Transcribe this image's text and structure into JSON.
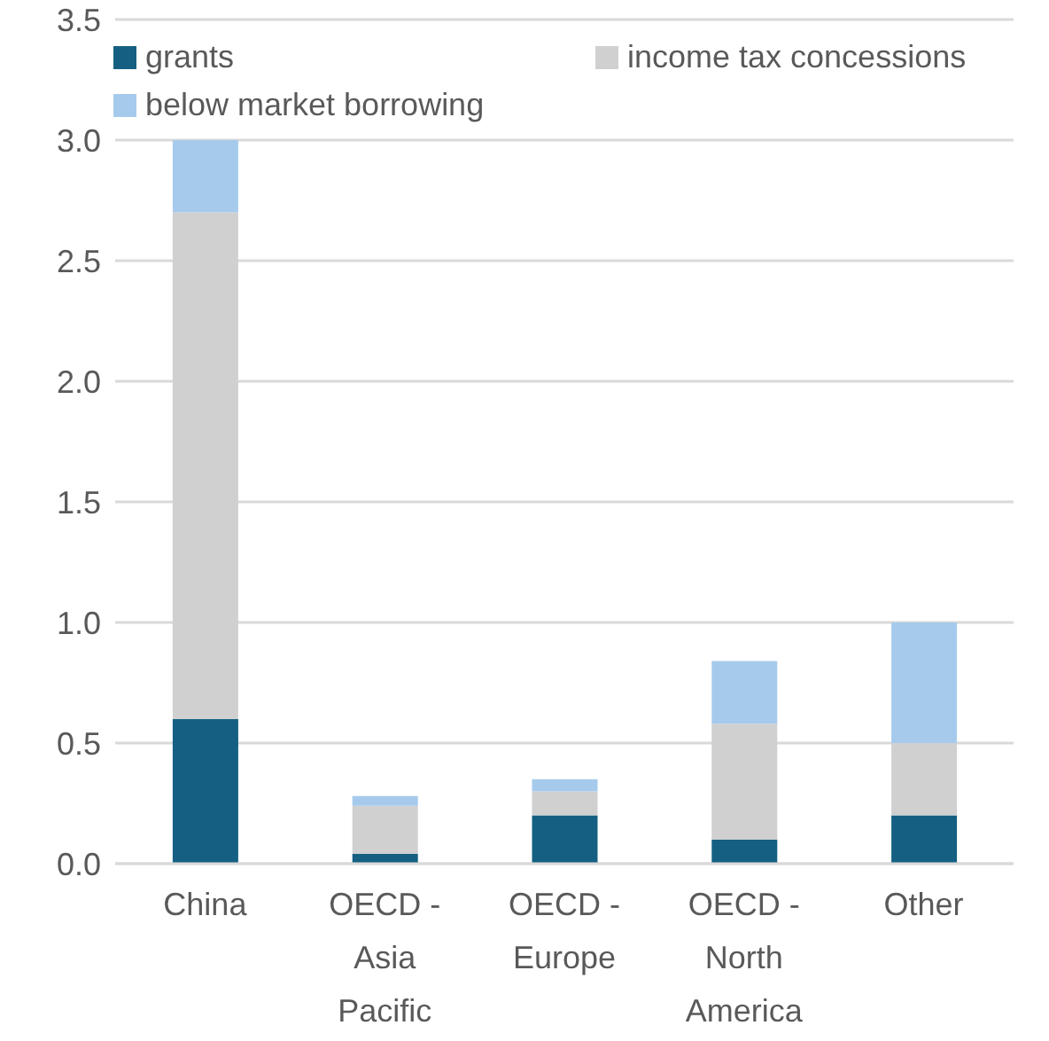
{
  "chart_data": {
    "type": "bar",
    "stacked": true,
    "categories": [
      "China",
      "OECD - Asia Pacific",
      "OECD - Europe",
      "OECD - North America",
      "Other"
    ],
    "series": [
      {
        "name": "grants",
        "color": "#156082",
        "values": [
          0.6,
          0.04,
          0.2,
          0.1,
          0.2
        ]
      },
      {
        "name": "income tax concessions",
        "color": "#d0d0d0",
        "values": [
          2.1,
          0.2,
          0.1,
          0.48,
          0.3
        ]
      },
      {
        "name": "below market borrowing",
        "color": "#a6caec",
        "values": [
          0.3,
          0.04,
          0.05,
          0.26,
          0.5
        ]
      }
    ],
    "ylim": [
      0,
      3.5
    ],
    "yticks": [
      {
        "value": 0,
        "label": "0.0"
      },
      {
        "value": 0.5,
        "label": "0.5"
      },
      {
        "value": 1,
        "label": "1.0"
      },
      {
        "value": 1.5,
        "label": "1.5"
      },
      {
        "value": 2,
        "label": "2.0"
      },
      {
        "value": 2.5,
        "label": "2.5"
      },
      {
        "value": 3,
        "label": "3.0"
      },
      {
        "value": 3.5,
        "label": "3.5"
      }
    ],
    "grid": "y",
    "legend": "top"
  }
}
